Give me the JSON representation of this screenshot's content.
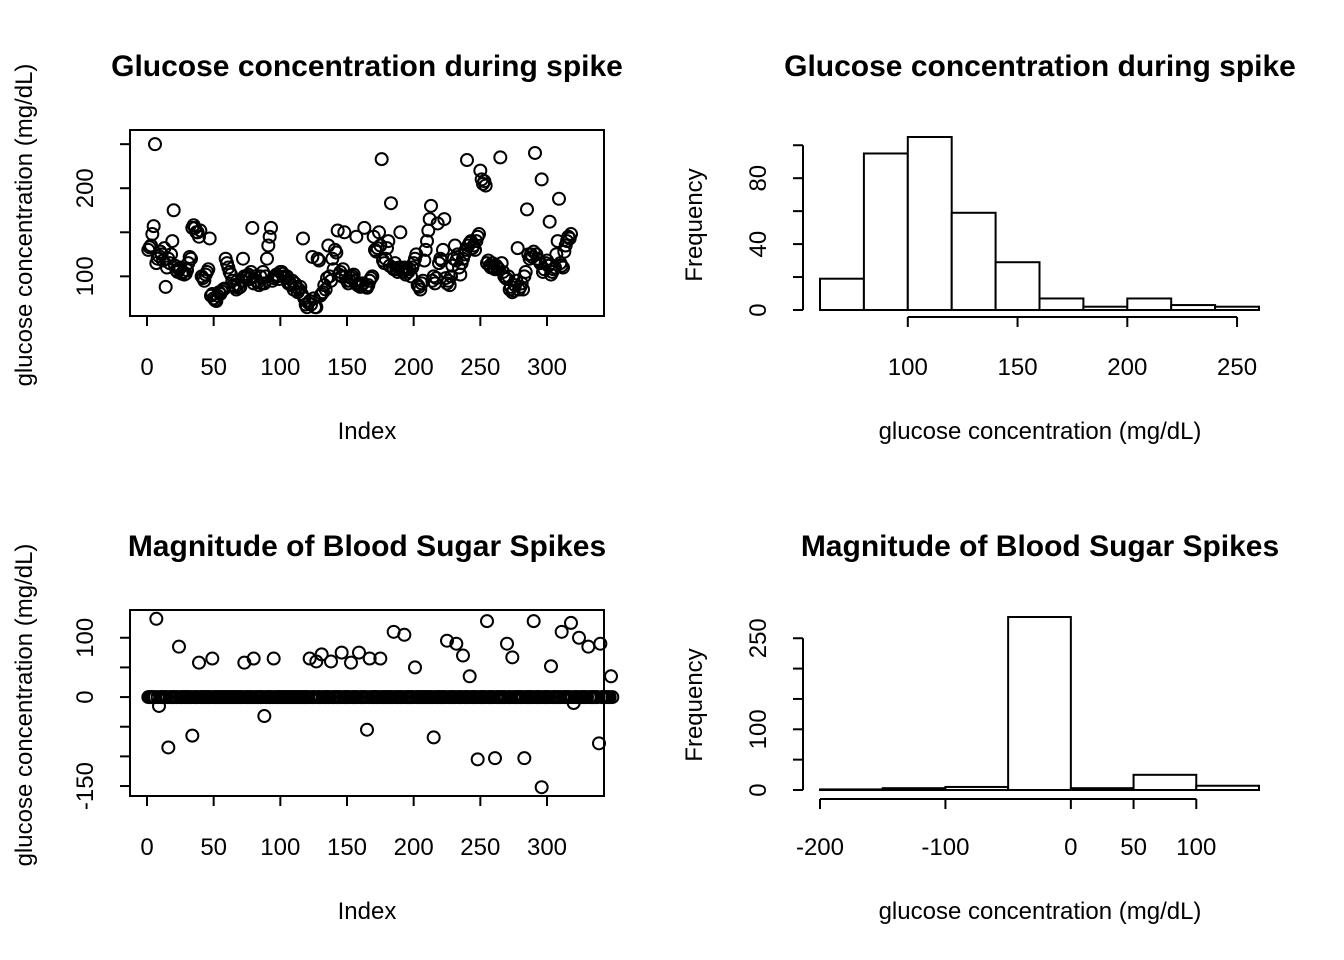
{
  "chart_data": [
    {
      "type": "scatter",
      "title": "Glucose concentration during spike",
      "xlabel": "Index",
      "ylabel": "glucose concentration (mg/dL)",
      "xlim": [
        0,
        330
      ],
      "ylim": [
        55,
        257
      ],
      "xticks": [
        0,
        50,
        100,
        150,
        200,
        250,
        300
      ],
      "yticks": [
        100,
        200
      ],
      "y": [
        130,
        133,
        135,
        148,
        157,
        250,
        115,
        120,
        123,
        128,
        125,
        118,
        132,
        88,
        110,
        120,
        115,
        125,
        140,
        175,
        112,
        107,
        105,
        108,
        110,
        103,
        105,
        102,
        103,
        107,
        115,
        122,
        120,
        155,
        158,
        155,
        150,
        150,
        145,
        152,
        100,
        98,
        95,
        102,
        105,
        108,
        143,
        78,
        80,
        75,
        73,
        72,
        78,
        82,
        80,
        83,
        85,
        86,
        120,
        115,
        110,
        105,
        102,
        95,
        90,
        88,
        85,
        90,
        87,
        88,
        95,
        120,
        100,
        98,
        100,
        102,
        97,
        105,
        155,
        92,
        100,
        95,
        93,
        90,
        100,
        92,
        105,
        92,
        100,
        120,
        135,
        145,
        155,
        95,
        98,
        100,
        102,
        100,
        97,
        105,
        105,
        103,
        100,
        98,
        100,
        92,
        93,
        90,
        95,
        85,
        92,
        88,
        82,
        85,
        88,
        80,
        143,
        75,
        68,
        65,
        70,
        72,
        68,
        122,
        75,
        65,
        65,
        120,
        118,
        78,
        80,
        82,
        90,
        85,
        98,
        135,
        100,
        95,
        120,
        108,
        130,
        127,
        152,
        102,
        105,
        100,
        108,
        150,
        100,
        95,
        92,
        95,
        98,
        100,
        102,
        95,
        145,
        90,
        92,
        88,
        90,
        92,
        155,
        88,
        87,
        90,
        95,
        98,
        100,
        145,
        130,
        128,
        132,
        150,
        135,
        233,
        118,
        115,
        120,
        132,
        140,
        112,
        183,
        110,
        108,
        115,
        108,
        105,
        110,
        150,
        108,
        105,
        110,
        102,
        108,
        105,
        108,
        100,
        110,
        115,
        120,
        125,
        90,
        88,
        85,
        92,
        95,
        118,
        130,
        140,
        152,
        165,
        180,
        95,
        100,
        92,
        98,
        160,
        115,
        120,
        118,
        130,
        165,
        98,
        92,
        95,
        90,
        100,
        112,
        120,
        135,
        118,
        125,
        110,
        102,
        115,
        120,
        125,
        130,
        232,
        135,
        138,
        140,
        132,
        135,
        130,
        140,
        145,
        148,
        220,
        210,
        205,
        208,
        203,
        115,
        118,
        112,
        110,
        115,
        110,
        108,
        112,
        110,
        108,
        235,
        115,
        105,
        100,
        98,
        97,
        100,
        85,
        88,
        82,
        84,
        90,
        95,
        132,
        85,
        88,
        92,
        85,
        100,
        105,
        176,
        125,
        120,
        125,
        122,
        128,
        240,
        125,
        120,
        118,
        115,
        210,
        105,
        108,
        115,
        118,
        112,
        162,
        102,
        105,
        108,
        110,
        125,
        140,
        188,
        115,
        112,
        110,
        128,
        135,
        140,
        145,
        143,
        148
      ]
    },
    {
      "type": "bar",
      "title": "Glucose concentration during spike",
      "xlabel": "glucose concentration (mg/dL)",
      "ylabel": "Frequency",
      "bins": [
        [
          60,
          80
        ],
        [
          80,
          100
        ],
        [
          100,
          120
        ],
        [
          120,
          140
        ],
        [
          140,
          160
        ],
        [
          160,
          180
        ],
        [
          180,
          200
        ],
        [
          200,
          220
        ],
        [
          220,
          240
        ],
        [
          240,
          260
        ]
      ],
      "values": [
        19,
        95,
        105,
        59,
        29,
        7,
        2,
        7,
        3,
        2
      ],
      "xlim": [
        60,
        260
      ],
      "ylim": [
        0,
        105
      ],
      "xticks": [
        100,
        150,
        200,
        250
      ],
      "yticks": [
        0,
        40,
        80
      ]
    },
    {
      "type": "scatter",
      "title": "Magnitude of Blood Sugar Spikes",
      "xlabel": "Index",
      "ylabel": "glucose concentration (mg/dL)",
      "xlim": [
        0,
        330
      ],
      "ylim": [
        -155,
        135
      ],
      "xticks": [
        0,
        50,
        100,
        150,
        200,
        250,
        300
      ],
      "yticks": [
        -150,
        0,
        100
      ],
      "y": [
        0,
        0,
        0,
        0,
        0,
        0,
        132,
        0,
        -15,
        0,
        0,
        0,
        0,
        0,
        0,
        -85,
        0,
        0,
        0,
        0,
        0,
        0,
        0,
        85,
        0,
        0,
        0,
        0,
        0,
        0,
        0,
        0,
        0,
        -65,
        0,
        0,
        0,
        0,
        58,
        0,
        0,
        0,
        0,
        0,
        0,
        0,
        0,
        0,
        65,
        0,
        0,
        0,
        0,
        0,
        0,
        0,
        0,
        0,
        0,
        0,
        0,
        0,
        0,
        0,
        0,
        0,
        0,
        0,
        0,
        0,
        0,
        0,
        58,
        0,
        0,
        0,
        0,
        0,
        0,
        65,
        0,
        0,
        0,
        0,
        0,
        0,
        0,
        -32,
        0,
        0,
        0,
        0,
        0,
        0,
        65,
        0,
        0,
        0,
        0,
        0,
        0,
        0,
        0,
        0,
        0,
        0,
        0,
        0,
        0,
        0,
        0,
        0,
        0,
        0,
        0,
        0,
        0,
        0,
        0,
        0,
        0,
        65,
        0,
        0,
        0,
        0,
        60,
        0,
        0,
        0,
        72,
        0,
        0,
        0,
        0,
        0,
        0,
        60,
        0,
        0,
        0,
        0,
        0,
        0,
        0,
        75,
        0,
        0,
        0,
        0,
        0,
        0,
        58,
        0,
        0,
        0,
        0,
        0,
        75,
        0,
        0,
        0,
        0,
        0,
        -55,
        0,
        65,
        0,
        0,
        0,
        0,
        0,
        0,
        0,
        65,
        0,
        0,
        0,
        0,
        0,
        0,
        0,
        0,
        0,
        110,
        0,
        0,
        0,
        0,
        0,
        0,
        0,
        105,
        0,
        0,
        0,
        0,
        0,
        0,
        0,
        50,
        0,
        0,
        0,
        0,
        0,
        0,
        0,
        0,
        0,
        0,
        0,
        0,
        0,
        -68,
        0,
        0,
        0,
        0,
        0,
        0,
        0,
        0,
        0,
        95,
        0,
        0,
        0,
        0,
        0,
        0,
        90,
        0,
        0,
        0,
        0,
        70,
        0,
        0,
        0,
        0,
        35,
        0,
        0,
        0,
        0,
        0,
        -105,
        0,
        0,
        0,
        0,
        0,
        0,
        128,
        0,
        0,
        0,
        0,
        0,
        -103,
        0,
        0,
        0,
        0,
        0,
        0,
        0,
        0,
        90,
        0,
        0,
        0,
        67,
        0,
        0,
        0,
        0,
        0,
        0,
        0,
        0,
        -103,
        0,
        0,
        0,
        0,
        0,
        0,
        128,
        0,
        0,
        0,
        0,
        0,
        -152,
        0,
        0,
        0,
        0,
        0,
        0,
        52,
        0,
        0,
        0,
        0,
        0,
        0,
        0,
        110,
        0,
        0,
        0,
        0,
        0,
        0,
        125,
        0,
        -10,
        0,
        0,
        0,
        100,
        0,
        0,
        0,
        0,
        0,
        0,
        85,
        0,
        0,
        0,
        0,
        0,
        0,
        0,
        -78,
        90,
        0,
        0,
        0,
        0,
        0,
        0,
        0,
        35,
        0
      ]
    },
    {
      "type": "bar",
      "title": "Magnitude of Blood Sugar Spikes",
      "xlabel": "glucose concentration (mg/dL)",
      "ylabel": "Frequency",
      "bins": [
        [
          -200,
          -150
        ],
        [
          -150,
          -100
        ],
        [
          -100,
          -50
        ],
        [
          -50,
          0
        ],
        [
          0,
          50
        ],
        [
          50,
          100
        ],
        [
          100,
          150
        ]
      ],
      "values": [
        1,
        3,
        5,
        285,
        3,
        25,
        7
      ],
      "xlim": [
        -200,
        150
      ],
      "ylim": [
        0,
        285
      ],
      "xticks": [
        -200,
        -100,
        0,
        50,
        100
      ],
      "yticks": [
        0,
        100,
        250
      ]
    }
  ]
}
